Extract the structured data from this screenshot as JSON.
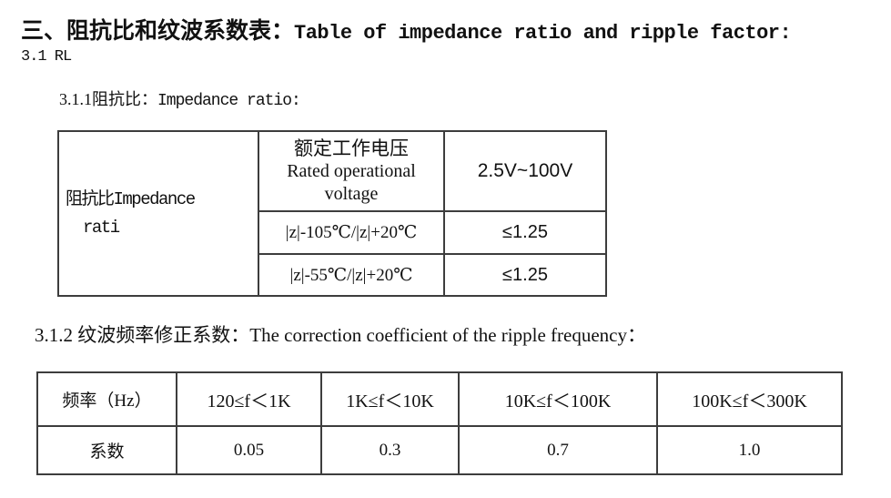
{
  "document": {
    "title": {
      "zh": "三、阻抗比和纹波系数表：",
      "en": "Table of impedance ratio and ripple factor:"
    },
    "section_3_1": "3.1 RL",
    "section_3_1_1": {
      "zh": "3.1.1阻抗比：",
      "en": "Impedance ratio:"
    },
    "section_3_1_2": {
      "zh": "3.1.2 纹波频率修正系数：",
      "en": "The correction coefficient of the ripple frequency："
    }
  },
  "impedance_table": {
    "row_header": {
      "line1": "阻抗比Impedance",
      "line2": "rati"
    },
    "col_header": {
      "zh": "额定工作电压",
      "en_line1": "Rated operational",
      "en_line2": "voltage"
    },
    "voltage_range": "2.5V~100V",
    "rows": [
      {
        "condition": "|z|-105℃/|z|+20℃",
        "value": "≤1.25"
      },
      {
        "condition": "|z|-55℃/|z|+20℃",
        "value": "≤1.25"
      }
    ]
  },
  "ripple_table": {
    "row1_header": "频率（Hz）",
    "row2_header": "系数",
    "columns": [
      {
        "frequency": "120≤f＜1K",
        "coefficient": "0.05"
      },
      {
        "frequency": "1K≤f＜10K",
        "coefficient": "0.3"
      },
      {
        "frequency": "10K≤f＜100K",
        "coefficient": "0.7"
      },
      {
        "frequency": "100K≤f＜300K",
        "coefficient": "1.0"
      }
    ]
  }
}
